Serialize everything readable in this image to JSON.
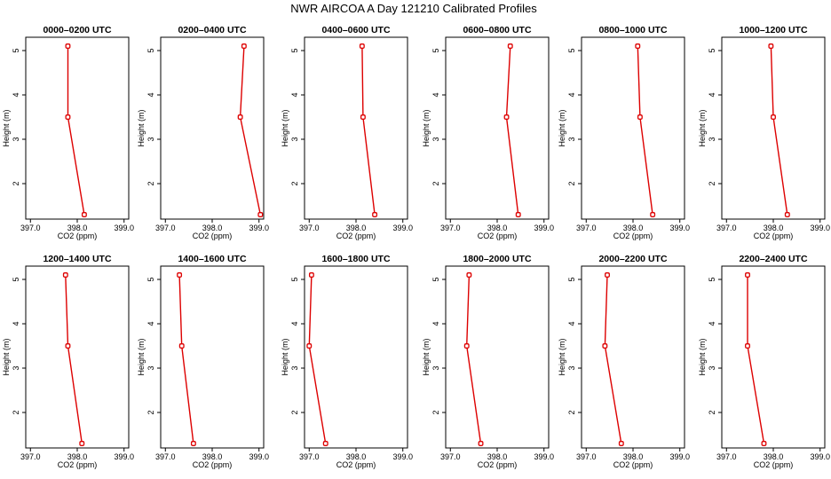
{
  "figure_title": "NWR AIRCOA A  Day 121210  Calibrated Profiles",
  "colors": {
    "line": "#dd0000",
    "frame": "#000000",
    "background": "#ffffff"
  },
  "chart_data": [
    {
      "type": "line",
      "title": "0000–0200 UTC",
      "xlabel": "CO2 (ppm)",
      "ylabel": "Height (m)",
      "xlim": [
        396.9,
        399.1
      ],
      "ylim": [
        1.2,
        5.3
      ],
      "xticks": [
        397.0,
        398.0,
        399.0
      ],
      "xtick_labels": [
        "397.0",
        "398.0",
        "399.0"
      ],
      "yticks": [
        2,
        3,
        4,
        5
      ],
      "ytick_labels": [
        "2",
        "3",
        "4",
        "5"
      ],
      "series": [
        {
          "name": "profile",
          "x": [
            398.15,
            397.8,
            397.8
          ],
          "y": [
            1.3,
            3.5,
            5.1
          ]
        }
      ]
    },
    {
      "type": "line",
      "title": "0200–0400 UTC",
      "xlabel": "CO2 (ppm)",
      "ylabel": "Height (m)",
      "xlim": [
        396.9,
        399.1
      ],
      "ylim": [
        1.2,
        5.3
      ],
      "xticks": [
        397.0,
        398.0,
        399.0
      ],
      "xtick_labels": [
        "397.0",
        "398.0",
        "399.0"
      ],
      "yticks": [
        2,
        3,
        4,
        5
      ],
      "ytick_labels": [
        "2",
        "3",
        "4",
        "5"
      ],
      "series": [
        {
          "name": "profile",
          "x": [
            399.03,
            398.6,
            398.68
          ],
          "y": [
            1.3,
            3.5,
            5.1
          ]
        }
      ]
    },
    {
      "type": "line",
      "title": "0400–0600 UTC",
      "xlabel": "CO2 (ppm)",
      "ylabel": "Height (m)",
      "xlim": [
        396.9,
        399.1
      ],
      "ylim": [
        1.2,
        5.3
      ],
      "xticks": [
        397.0,
        398.0,
        399.0
      ],
      "xtick_labels": [
        "397.0",
        "398.0",
        "399.0"
      ],
      "yticks": [
        2,
        3,
        4,
        5
      ],
      "ytick_labels": [
        "2",
        "3",
        "4",
        "5"
      ],
      "series": [
        {
          "name": "profile",
          "x": [
            398.4,
            398.15,
            398.13
          ],
          "y": [
            1.3,
            3.5,
            5.1
          ]
        }
      ]
    },
    {
      "type": "line",
      "title": "0600–0800 UTC",
      "xlabel": "CO2 (ppm)",
      "ylabel": "Height (m)",
      "xlim": [
        396.9,
        399.1
      ],
      "ylim": [
        1.2,
        5.3
      ],
      "xticks": [
        397.0,
        398.0,
        399.0
      ],
      "xtick_labels": [
        "397.0",
        "398.0",
        "399.0"
      ],
      "yticks": [
        2,
        3,
        4,
        5
      ],
      "ytick_labels": [
        "2",
        "3",
        "4",
        "5"
      ],
      "series": [
        {
          "name": "profile",
          "x": [
            398.45,
            398.2,
            398.28
          ],
          "y": [
            1.3,
            3.5,
            5.1
          ]
        }
      ]
    },
    {
      "type": "line",
      "title": "0800–1000 UTC",
      "xlabel": "CO2 (ppm)",
      "ylabel": "Height (m)",
      "xlim": [
        396.9,
        399.1
      ],
      "ylim": [
        1.2,
        5.3
      ],
      "xticks": [
        397.0,
        398.0,
        399.0
      ],
      "xtick_labels": [
        "397.0",
        "398.0",
        "399.0"
      ],
      "yticks": [
        2,
        3,
        4,
        5
      ],
      "ytick_labels": [
        "2",
        "3",
        "4",
        "5"
      ],
      "series": [
        {
          "name": "profile",
          "x": [
            398.42,
            398.15,
            398.1
          ],
          "y": [
            1.3,
            3.5,
            5.1
          ]
        }
      ]
    },
    {
      "type": "line",
      "title": "1000–1200 UTC",
      "xlabel": "CO2 (ppm)",
      "ylabel": "Height (m)",
      "xlim": [
        396.9,
        399.1
      ],
      "ylim": [
        1.2,
        5.3
      ],
      "xticks": [
        397.0,
        398.0,
        399.0
      ],
      "xtick_labels": [
        "397.0",
        "398.0",
        "399.0"
      ],
      "yticks": [
        2,
        3,
        4,
        5
      ],
      "ytick_labels": [
        "2",
        "3",
        "4",
        "5"
      ],
      "series": [
        {
          "name": "profile",
          "x": [
            398.3,
            398.0,
            397.95
          ],
          "y": [
            1.3,
            3.5,
            5.1
          ]
        }
      ]
    },
    {
      "type": "line",
      "title": "1200–1400 UTC",
      "xlabel": "CO2 (ppm)",
      "ylabel": "Height (m)",
      "xlim": [
        396.9,
        399.1
      ],
      "ylim": [
        1.2,
        5.3
      ],
      "xticks": [
        397.0,
        398.0,
        399.0
      ],
      "xtick_labels": [
        "397.0",
        "398.0",
        "399.0"
      ],
      "yticks": [
        2,
        3,
        4,
        5
      ],
      "ytick_labels": [
        "2",
        "3",
        "4",
        "5"
      ],
      "series": [
        {
          "name": "profile",
          "x": [
            398.1,
            397.8,
            397.75
          ],
          "y": [
            1.3,
            3.5,
            5.1
          ]
        }
      ]
    },
    {
      "type": "line",
      "title": "1400–1600 UTC",
      "xlabel": "CO2 (ppm)",
      "ylabel": "Height (m)",
      "xlim": [
        396.9,
        399.1
      ],
      "ylim": [
        1.2,
        5.3
      ],
      "xticks": [
        397.0,
        398.0,
        399.0
      ],
      "xtick_labels": [
        "397.0",
        "398.0",
        "399.0"
      ],
      "yticks": [
        2,
        3,
        4,
        5
      ],
      "ytick_labels": [
        "2",
        "3",
        "4",
        "5"
      ],
      "series": [
        {
          "name": "profile",
          "x": [
            397.6,
            397.35,
            397.3
          ],
          "y": [
            1.3,
            3.5,
            5.1
          ]
        }
      ]
    },
    {
      "type": "line",
      "title": "1600–1800 UTC",
      "xlabel": "CO2 (ppm)",
      "ylabel": "Height (m)",
      "xlim": [
        396.9,
        399.1
      ],
      "ylim": [
        1.2,
        5.3
      ],
      "xticks": [
        397.0,
        398.0,
        399.0
      ],
      "xtick_labels": [
        "397.0",
        "398.0",
        "399.0"
      ],
      "yticks": [
        2,
        3,
        4,
        5
      ],
      "ytick_labels": [
        "2",
        "3",
        "4",
        "5"
      ],
      "series": [
        {
          "name": "profile",
          "x": [
            397.35,
            397.0,
            397.05
          ],
          "y": [
            1.3,
            3.5,
            5.1
          ]
        }
      ]
    },
    {
      "type": "line",
      "title": "1800–2000 UTC",
      "xlabel": "CO2 (ppm)",
      "ylabel": "Height (m)",
      "xlim": [
        396.9,
        399.1
      ],
      "ylim": [
        1.2,
        5.3
      ],
      "xticks": [
        397.0,
        398.0,
        399.0
      ],
      "xtick_labels": [
        "397.0",
        "398.0",
        "399.0"
      ],
      "yticks": [
        2,
        3,
        4,
        5
      ],
      "ytick_labels": [
        "2",
        "3",
        "4",
        "5"
      ],
      "series": [
        {
          "name": "profile",
          "x": [
            397.65,
            397.35,
            397.4
          ],
          "y": [
            1.3,
            3.5,
            5.1
          ]
        }
      ]
    },
    {
      "type": "line",
      "title": "2000–2200 UTC",
      "xlabel": "CO2 (ppm)",
      "ylabel": "Height (m)",
      "xlim": [
        396.9,
        399.1
      ],
      "ylim": [
        1.2,
        5.3
      ],
      "xticks": [
        397.0,
        398.0,
        399.0
      ],
      "xtick_labels": [
        "397.0",
        "398.0",
        "399.0"
      ],
      "yticks": [
        2,
        3,
        4,
        5
      ],
      "ytick_labels": [
        "2",
        "3",
        "4",
        "5"
      ],
      "series": [
        {
          "name": "profile",
          "x": [
            397.75,
            397.4,
            397.45
          ],
          "y": [
            1.3,
            3.5,
            5.1
          ]
        }
      ]
    },
    {
      "type": "line",
      "title": "2200–2400 UTC",
      "xlabel": "CO2 (ppm)",
      "ylabel": "Height (m)",
      "xlim": [
        396.9,
        399.1
      ],
      "ylim": [
        1.2,
        5.3
      ],
      "xticks": [
        397.0,
        398.0,
        399.0
      ],
      "xtick_labels": [
        "397.0",
        "398.0",
        "399.0"
      ],
      "yticks": [
        2,
        3,
        4,
        5
      ],
      "ytick_labels": [
        "2",
        "3",
        "4",
        "5"
      ],
      "series": [
        {
          "name": "profile",
          "x": [
            397.8,
            397.45,
            397.45
          ],
          "y": [
            1.3,
            3.5,
            5.1
          ]
        }
      ]
    }
  ]
}
